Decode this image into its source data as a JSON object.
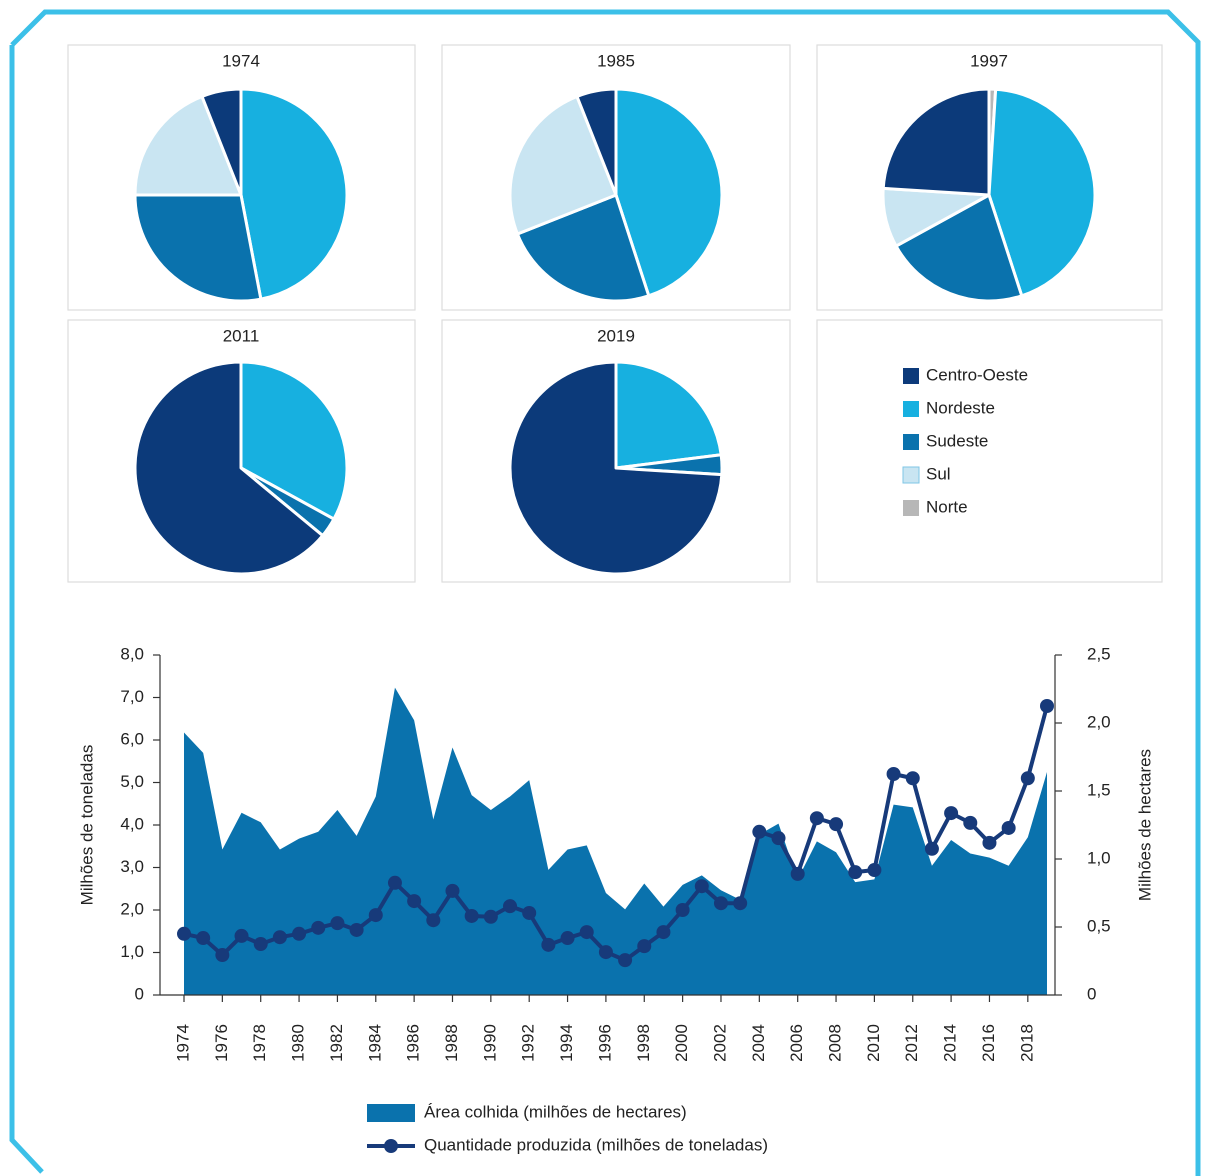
{
  "chart_data": [
    {
      "type": "pie",
      "title": "1974",
      "categories": [
        "Centro-Oeste",
        "Nordeste",
        "Sudeste",
        "Sul",
        "Norte"
      ],
      "values": [
        6,
        47,
        28,
        19,
        0
      ],
      "colors": [
        "#0c3a7a",
        "#17b0e0",
        "#0a72ad",
        "#c9e5f2",
        "#b7b7b7"
      ]
    },
    {
      "type": "pie",
      "title": "1985",
      "categories": [
        "Centro-Oeste",
        "Nordeste",
        "Sudeste",
        "Sul",
        "Norte"
      ],
      "values": [
        6,
        45,
        24,
        25,
        0
      ],
      "colors": [
        "#0c3a7a",
        "#17b0e0",
        "#0a72ad",
        "#c9e5f2",
        "#b7b7b7"
      ]
    },
    {
      "type": "pie",
      "title": "1997",
      "categories": [
        "Centro-Oeste",
        "Nordeste",
        "Sudeste",
        "Sul",
        "Norte"
      ],
      "values": [
        24,
        44,
        22,
        9,
        1
      ],
      "colors": [
        "#0c3a7a",
        "#17b0e0",
        "#0a72ad",
        "#c9e5f2",
        "#b7b7b7"
      ]
    },
    {
      "type": "pie",
      "title": "2011",
      "categories": [
        "Centro-Oeste",
        "Nordeste",
        "Sudeste",
        "Sul",
        "Norte"
      ],
      "values": [
        64,
        33,
        3,
        0,
        0
      ],
      "colors": [
        "#0c3a7a",
        "#17b0e0",
        "#0a72ad",
        "#c9e5f2",
        "#b7b7b7"
      ]
    },
    {
      "type": "pie",
      "title": "2019",
      "categories": [
        "Centro-Oeste",
        "Nordeste",
        "Sudeste",
        "Sul",
        "Norte"
      ],
      "values": [
        74,
        23,
        3,
        0,
        0
      ],
      "colors": [
        "#0c3a7a",
        "#17b0e0",
        "#0a72ad",
        "#c9e5f2",
        "#b7b7b7"
      ]
    },
    {
      "type": "combo",
      "x": [
        1974,
        1975,
        1976,
        1977,
        1978,
        1979,
        1980,
        1981,
        1982,
        1983,
        1984,
        1985,
        1986,
        1987,
        1988,
        1989,
        1990,
        1991,
        1992,
        1993,
        1994,
        1995,
        1996,
        1997,
        1998,
        1999,
        2000,
        2001,
        2002,
        2003,
        2004,
        2005,
        2006,
        2007,
        2008,
        2009,
        2010,
        2011,
        2012,
        2013,
        2014,
        2015,
        2016,
        2017,
        2018,
        2019
      ],
      "xlim": [
        1974,
        2019
      ],
      "xticks": [
        1974,
        1976,
        1978,
        1980,
        1982,
        1984,
        1986,
        1988,
        1990,
        1992,
        1994,
        1996,
        1998,
        2000,
        2002,
        2004,
        2006,
        2008,
        2010,
        2012,
        2014,
        2016,
        2018
      ],
      "ylabel": "Milhões de toneladas",
      "y2label": "Milhões de hectares",
      "ylim": [
        0,
        8
      ],
      "yticks": [
        0,
        {
          "value": 1,
          "label": "1,0"
        },
        {
          "value": 2,
          "label": "2,0"
        },
        {
          "value": 3,
          "label": "3,0"
        },
        {
          "value": 4,
          "label": "4,0"
        },
        {
          "value": 5,
          "label": "5,0"
        },
        {
          "value": 6,
          "label": "6,0"
        },
        {
          "value": 7,
          "label": "7,0"
        },
        {
          "value": 8,
          "label": "8,0"
        }
      ],
      "y2lim": [
        0,
        2.5
      ],
      "y2ticks": [
        0,
        {
          "value": 0.5,
          "label": "0,5"
        },
        {
          "value": 1,
          "label": "1,0"
        },
        {
          "value": 1.5,
          "label": "1,5"
        },
        {
          "value": 2,
          "label": "2,0"
        },
        {
          "value": 2.5,
          "label": "2,5"
        }
      ],
      "series": [
        {
          "name": "Área colhida (milhões de hectares)",
          "type": "area",
          "axis": "y2",
          "color": "#0a72ad",
          "values": [
            1.93,
            1.78,
            1.07,
            1.34,
            1.27,
            1.07,
            1.15,
            1.2,
            1.36,
            1.17,
            1.46,
            2.26,
            2.02,
            1.29,
            1.82,
            1.47,
            1.36,
            1.46,
            1.58,
            0.92,
            1.07,
            1.1,
            0.75,
            0.63,
            0.82,
            0.65,
            0.81,
            0.88,
            0.77,
            0.7,
            1.18,
            1.26,
            0.85,
            1.13,
            1.05,
            0.83,
            0.85,
            1.4,
            1.38,
            0.95,
            1.14,
            1.04,
            1.01,
            0.95,
            1.16,
            1.64
          ]
        },
        {
          "name": "Quantidade produzida (milhões de toneladas)",
          "type": "line",
          "axis": "y",
          "color": "#173a7a",
          "values": [
            1.44,
            1.34,
            0.94,
            1.39,
            1.2,
            1.36,
            1.44,
            1.58,
            1.69,
            1.53,
            1.88,
            2.64,
            2.21,
            1.76,
            2.45,
            1.86,
            1.84,
            2.09,
            1.93,
            1.18,
            1.34,
            1.48,
            1.01,
            0.82,
            1.15,
            1.48,
            2.0,
            2.56,
            2.16,
            2.16,
            3.84,
            3.69,
            2.85,
            4.16,
            4.02,
            2.89,
            2.94,
            5.2,
            5.1,
            3.44,
            4.28,
            4.05,
            3.58,
            3.93,
            5.1,
            6.8
          ]
        }
      ]
    }
  ]
}
